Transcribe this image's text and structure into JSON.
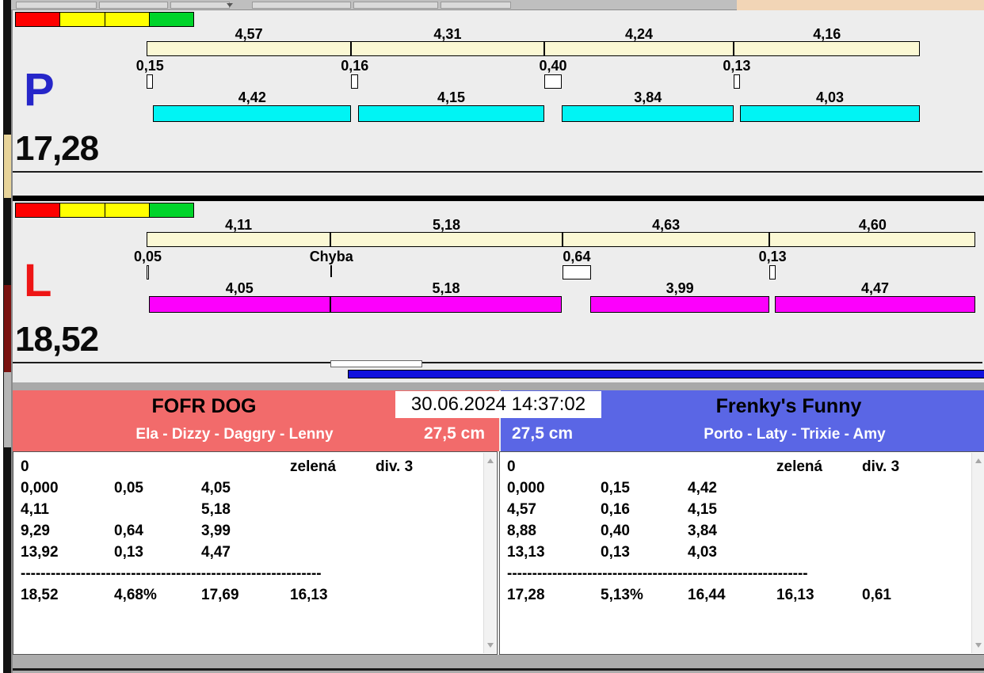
{
  "meta": {
    "timestamp": "30.06.2024 14:37:02"
  },
  "layout_scale": 56.5,
  "colors": {
    "traffic": [
      "#fe0000",
      "#ffff00",
      "#ffff00",
      "#00d42a"
    ],
    "cream_bar": "#fbf8d4",
    "progress_blue": "#1212dd",
    "top_right_panel": "#f2d5b6"
  },
  "lanes": [
    {
      "letter": "P",
      "letter_color": "#2626c9",
      "bar_color": "#00f4f4",
      "total": "17,28",
      "top_splits": [
        "4,57",
        "4,31",
        "4,24",
        "4,16"
      ],
      "gaps": [
        "0,15",
        "0,16",
        "0,40",
        "0,13"
      ],
      "bottom_splits": [
        "4,42",
        "4,15",
        "3,84",
        "4,03"
      ]
    },
    {
      "letter": "L",
      "letter_color": "#ee1515",
      "bar_color": "#fc00fc",
      "total": "18,52",
      "top_splits": [
        "4,11",
        "5,18",
        "4,63",
        "4,60"
      ],
      "gaps": [
        "0,05",
        "Chyba",
        "0,64",
        "0,13"
      ],
      "bottom_splits": [
        "4,05",
        "5,18",
        "3,99",
        "4,47"
      ]
    }
  ],
  "teams": [
    {
      "name": "FOFR DOG",
      "dogs": "Ela - Dizzy - Daggry - Lenny",
      "jump_height": "27,5 cm",
      "color": "#f26b6b",
      "log": [
        [
          "0",
          "",
          "",
          "zelená",
          "div. 3"
        ],
        [
          "0,000",
          "0,05",
          "4,05"
        ],
        [
          "4,11",
          "",
          "5,18"
        ],
        [
          "9,29",
          "0,64",
          "3,99"
        ],
        [
          "13,92",
          "0,13",
          "4,47"
        ],
        [
          "------------------------------------------------------------"
        ],
        [
          "18,52",
          "4,68%",
          "17,69",
          "16,13"
        ]
      ]
    },
    {
      "name": "Frenky's Funny",
      "dogs": "Porto - Laty - Trixie - Amy",
      "jump_height": "27,5 cm",
      "color": "#5a66e5",
      "log": [
        [
          "0",
          "",
          "",
          "zelená",
          "div. 3"
        ],
        [
          "0,000",
          "0,15",
          "4,42"
        ],
        [
          "4,57",
          "0,16",
          "4,15"
        ],
        [
          "8,88",
          "0,40",
          "3,84"
        ],
        [
          "13,13",
          "0,13",
          "4,03"
        ],
        [
          "------------------------------------------------------------"
        ],
        [
          "17,28",
          "5,13%",
          "16,44",
          "16,13",
          "0,61"
        ]
      ]
    }
  ]
}
